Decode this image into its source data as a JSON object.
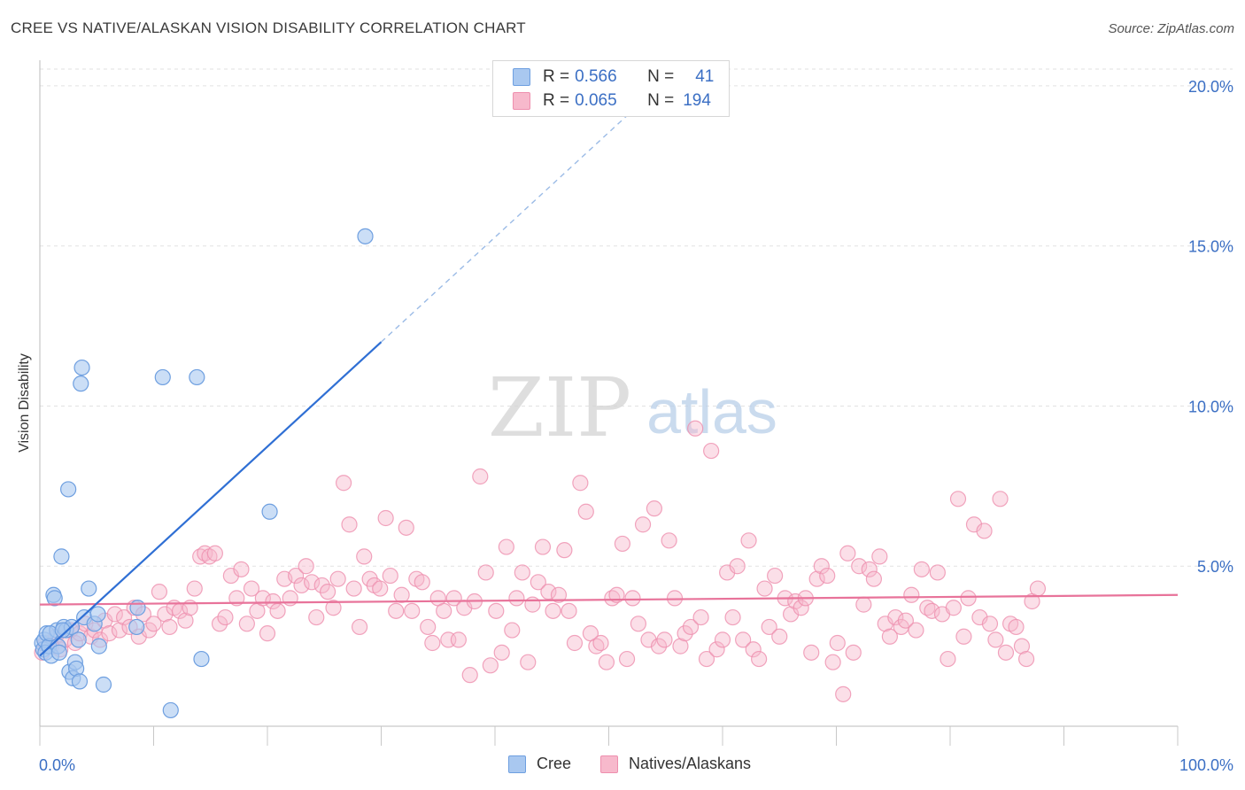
{
  "title": "CREE VS NATIVE/ALASKAN VISION DISABILITY CORRELATION CHART",
  "source": "Source: ZipAtlas.com",
  "watermark": {
    "zip": "ZIP",
    "atlas": "atlas"
  },
  "colors": {
    "cree_fill": "#a9c8f0",
    "cree_stroke": "#6e9fe0",
    "cree_line": "#2f6fd4",
    "native_fill": "#f7b9cc",
    "native_stroke": "#ee8fae",
    "native_line": "#e8739a",
    "tick_label": "#3b6fc4",
    "grid": "#e2e2e2"
  },
  "legend": {
    "rows": [
      {
        "r_label": "R =",
        "r_value": "0.566",
        "n_label": "N =",
        "n_value": "41"
      },
      {
        "r_label": "R =",
        "r_value": "0.065",
        "n_label": "N =",
        "n_value": "194"
      }
    ]
  },
  "bottom_legend": [
    "Cree",
    "Natives/Alaskans"
  ],
  "chart_data": {
    "type": "scatter",
    "title": "CREE VS NATIVE/ALASKAN VISION DISABILITY CORRELATION CHART",
    "xlabel": "",
    "ylabel": "Vision Disability",
    "xlim": [
      0,
      100
    ],
    "ylim": [
      0,
      20.8
    ],
    "x_tick_labels": [
      "0.0%",
      "100.0%"
    ],
    "y_ticks": [
      5,
      10,
      15,
      20
    ],
    "y_tick_labels": [
      "5.0%",
      "10.0%",
      "15.0%",
      "20.0%"
    ],
    "grid": true,
    "legend_position": "top-center",
    "series": [
      {
        "name": "Cree",
        "r": 0.566,
        "n": 41,
        "trend": {
          "x0": 0.0,
          "y0": 2.2,
          "x1": 30.0,
          "y1": 12.0,
          "dashed_to_x": 52.0,
          "dashed_to_y": 19.2
        },
        "points": [
          [
            0.2,
            2.6
          ],
          [
            0.3,
            2.4
          ],
          [
            0.4,
            2.7
          ],
          [
            0.5,
            2.3
          ],
          [
            0.6,
            2.9
          ],
          [
            0.8,
            2.5
          ],
          [
            1.0,
            2.2
          ],
          [
            1.2,
            4.1
          ],
          [
            1.3,
            4.0
          ],
          [
            1.5,
            3.0
          ],
          [
            1.6,
            2.5
          ],
          [
            1.7,
            2.3
          ],
          [
            1.9,
            5.3
          ],
          [
            2.1,
            3.1
          ],
          [
            2.3,
            3.0
          ],
          [
            2.5,
            7.4
          ],
          [
            2.6,
            1.7
          ],
          [
            2.8,
            3.1
          ],
          [
            2.9,
            1.5
          ],
          [
            3.1,
            2.0
          ],
          [
            3.2,
            1.8
          ],
          [
            3.4,
            2.7
          ],
          [
            3.5,
            1.4
          ],
          [
            3.7,
            11.2
          ],
          [
            3.6,
            10.7
          ],
          [
            3.9,
            3.4
          ],
          [
            4.3,
            4.3
          ],
          [
            4.8,
            3.2
          ],
          [
            5.1,
            3.5
          ],
          [
            5.2,
            2.5
          ],
          [
            5.6,
            1.3
          ],
          [
            8.5,
            3.1
          ],
          [
            8.6,
            3.7
          ],
          [
            10.8,
            10.9
          ],
          [
            11.5,
            0.5
          ],
          [
            13.8,
            10.9
          ],
          [
            14.2,
            2.1
          ],
          [
            20.2,
            6.7
          ],
          [
            28.6,
            15.3
          ],
          [
            0.9,
            2.9
          ],
          [
            2.0,
            3.0
          ]
        ]
      },
      {
        "name": "Natives/Alaskans",
        "r": 0.065,
        "n": 194,
        "trend": {
          "x0": 0.0,
          "y0": 3.8,
          "x1": 100.0,
          "y1": 4.1
        },
        "points": [
          [
            0.2,
            2.3
          ],
          [
            0.5,
            2.6
          ],
          [
            1.0,
            2.5
          ],
          [
            1.4,
            2.8
          ],
          [
            1.8,
            2.4
          ],
          [
            2.2,
            2.7
          ],
          [
            2.7,
            3.0
          ],
          [
            3.1,
            2.6
          ],
          [
            3.5,
            2.9
          ],
          [
            4.0,
            3.2
          ],
          [
            4.5,
            2.8
          ],
          [
            4.8,
            3.0
          ],
          [
            5.3,
            2.7
          ],
          [
            5.7,
            3.3
          ],
          [
            6.1,
            2.9
          ],
          [
            6.6,
            3.5
          ],
          [
            7.0,
            3.0
          ],
          [
            7.4,
            3.4
          ],
          [
            7.9,
            3.1
          ],
          [
            8.3,
            3.7
          ],
          [
            8.7,
            2.8
          ],
          [
            9.1,
            3.5
          ],
          [
            9.6,
            3.0
          ],
          [
            10.0,
            3.2
          ],
          [
            10.5,
            4.2
          ],
          [
            11.0,
            3.5
          ],
          [
            11.4,
            3.1
          ],
          [
            11.8,
            3.7
          ],
          [
            12.3,
            3.6
          ],
          [
            12.8,
            3.3
          ],
          [
            13.2,
            3.7
          ],
          [
            13.6,
            4.3
          ],
          [
            14.1,
            5.3
          ],
          [
            14.5,
            5.4
          ],
          [
            14.9,
            5.3
          ],
          [
            15.4,
            5.4
          ],
          [
            15.8,
            3.2
          ],
          [
            16.3,
            3.4
          ],
          [
            16.8,
            4.7
          ],
          [
            17.3,
            4.0
          ],
          [
            17.7,
            4.9
          ],
          [
            18.2,
            3.2
          ],
          [
            18.6,
            4.3
          ],
          [
            19.1,
            3.6
          ],
          [
            19.6,
            4.0
          ],
          [
            20.0,
            2.9
          ],
          [
            20.5,
            3.9
          ],
          [
            20.9,
            3.6
          ],
          [
            21.5,
            4.6
          ],
          [
            22.0,
            4.0
          ],
          [
            22.5,
            4.7
          ],
          [
            23.0,
            4.4
          ],
          [
            23.4,
            5.0
          ],
          [
            23.9,
            4.5
          ],
          [
            24.3,
            3.4
          ],
          [
            24.8,
            4.4
          ],
          [
            25.3,
            4.2
          ],
          [
            25.8,
            3.7
          ],
          [
            26.2,
            4.6
          ],
          [
            26.7,
            7.6
          ],
          [
            27.2,
            6.3
          ],
          [
            27.6,
            4.3
          ],
          [
            28.1,
            3.1
          ],
          [
            28.5,
            5.3
          ],
          [
            29.0,
            4.6
          ],
          [
            29.4,
            4.4
          ],
          [
            29.9,
            4.3
          ],
          [
            30.4,
            6.5
          ],
          [
            30.8,
            4.7
          ],
          [
            31.3,
            3.6
          ],
          [
            31.8,
            4.1
          ],
          [
            32.2,
            6.2
          ],
          [
            32.7,
            3.6
          ],
          [
            33.1,
            4.6
          ],
          [
            33.6,
            4.5
          ],
          [
            34.1,
            3.1
          ],
          [
            34.5,
            2.6
          ],
          [
            35.0,
            4.0
          ],
          [
            35.5,
            3.6
          ],
          [
            35.9,
            2.7
          ],
          [
            36.4,
            4.0
          ],
          [
            36.8,
            2.7
          ],
          [
            37.3,
            3.7
          ],
          [
            37.8,
            1.6
          ],
          [
            38.2,
            3.9
          ],
          [
            38.7,
            7.8
          ],
          [
            39.2,
            4.8
          ],
          [
            39.6,
            1.9
          ],
          [
            40.1,
            3.6
          ],
          [
            40.6,
            2.3
          ],
          [
            41.0,
            5.6
          ],
          [
            41.5,
            3.0
          ],
          [
            41.9,
            4.0
          ],
          [
            42.4,
            4.8
          ],
          [
            42.9,
            2.0
          ],
          [
            43.3,
            3.8
          ],
          [
            43.8,
            4.5
          ],
          [
            44.2,
            5.6
          ],
          [
            44.7,
            4.2
          ],
          [
            45.1,
            3.6
          ],
          [
            45.6,
            4.1
          ],
          [
            46.1,
            5.5
          ],
          [
            46.5,
            3.6
          ],
          [
            47.0,
            2.6
          ],
          [
            47.5,
            7.6
          ],
          [
            48.0,
            6.7
          ],
          [
            48.4,
            2.9
          ],
          [
            48.9,
            2.5
          ],
          [
            49.3,
            2.6
          ],
          [
            49.8,
            2.0
          ],
          [
            50.3,
            4.0
          ],
          [
            50.7,
            4.1
          ],
          [
            51.2,
            5.7
          ],
          [
            51.6,
            2.1
          ],
          [
            52.1,
            4.0
          ],
          [
            52.6,
            3.2
          ],
          [
            53.0,
            6.3
          ],
          [
            53.5,
            2.7
          ],
          [
            54.0,
            6.8
          ],
          [
            54.4,
            2.5
          ],
          [
            54.9,
            2.7
          ],
          [
            55.3,
            5.8
          ],
          [
            55.8,
            4.0
          ],
          [
            56.3,
            2.5
          ],
          [
            56.7,
            2.9
          ],
          [
            57.2,
            3.1
          ],
          [
            57.6,
            9.3
          ],
          [
            58.1,
            3.4
          ],
          [
            58.6,
            2.1
          ],
          [
            59.0,
            8.6
          ],
          [
            59.5,
            2.4
          ],
          [
            60.0,
            2.7
          ],
          [
            60.4,
            4.8
          ],
          [
            60.9,
            3.4
          ],
          [
            61.3,
            5.0
          ],
          [
            61.8,
            2.7
          ],
          [
            62.3,
            5.8
          ],
          [
            62.7,
            2.4
          ],
          [
            63.2,
            2.1
          ],
          [
            63.7,
            4.3
          ],
          [
            64.1,
            3.1
          ],
          [
            64.6,
            4.7
          ],
          [
            65.0,
            2.8
          ],
          [
            65.5,
            4.0
          ],
          [
            66.0,
            3.5
          ],
          [
            66.4,
            3.9
          ],
          [
            66.9,
            3.7
          ],
          [
            67.3,
            4.0
          ],
          [
            67.8,
            2.3
          ],
          [
            68.3,
            4.6
          ],
          [
            68.7,
            5.0
          ],
          [
            69.2,
            4.7
          ],
          [
            69.7,
            2.0
          ],
          [
            70.1,
            2.6
          ],
          [
            70.6,
            1.0
          ],
          [
            71.0,
            5.4
          ],
          [
            71.5,
            2.3
          ],
          [
            72.0,
            5.0
          ],
          [
            72.4,
            3.8
          ],
          [
            72.9,
            4.9
          ],
          [
            73.3,
            4.6
          ],
          [
            73.8,
            5.3
          ],
          [
            74.3,
            3.2
          ],
          [
            74.7,
            2.8
          ],
          [
            75.2,
            3.4
          ],
          [
            75.7,
            3.1
          ],
          [
            76.1,
            3.3
          ],
          [
            76.6,
            4.1
          ],
          [
            77.0,
            3.0
          ],
          [
            77.5,
            4.9
          ],
          [
            78.0,
            3.7
          ],
          [
            78.4,
            3.6
          ],
          [
            78.9,
            4.8
          ],
          [
            79.3,
            3.5
          ],
          [
            79.8,
            2.1
          ],
          [
            80.3,
            3.7
          ],
          [
            80.7,
            7.1
          ],
          [
            81.2,
            2.8
          ],
          [
            81.6,
            4.0
          ],
          [
            82.1,
            6.3
          ],
          [
            82.6,
            3.4
          ],
          [
            83.0,
            6.1
          ],
          [
            83.5,
            3.2
          ],
          [
            84.0,
            2.7
          ],
          [
            84.4,
            7.1
          ],
          [
            84.9,
            2.3
          ],
          [
            85.3,
            3.2
          ],
          [
            85.8,
            3.1
          ],
          [
            86.3,
            2.5
          ],
          [
            86.7,
            2.1
          ],
          [
            87.2,
            3.9
          ],
          [
            87.7,
            4.3
          ]
        ]
      }
    ]
  }
}
